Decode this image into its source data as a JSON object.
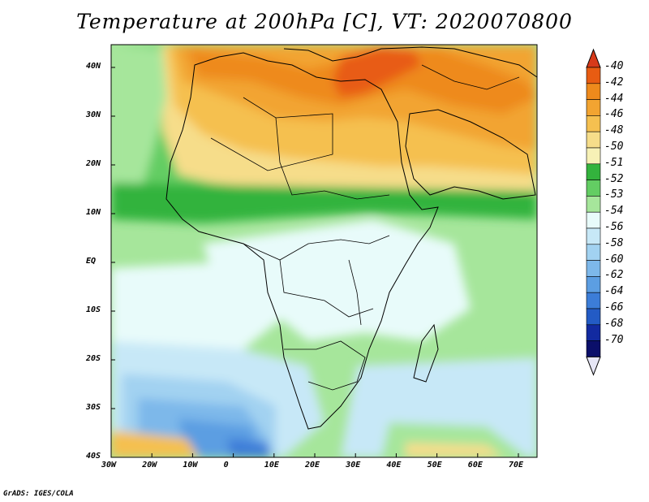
{
  "title": "Temperature at 200hPa [C], VT: 2020070800",
  "footer": "GrADS: IGES/COLA",
  "map": {
    "lon_range": [
      -30,
      75
    ],
    "lat_range": [
      -40,
      45
    ],
    "lat_ticks": [
      "40N",
      "30N",
      "20N",
      "10N",
      "EQ",
      "10S",
      "20S",
      "30S",
      "40S"
    ],
    "lon_ticks": [
      "30W",
      "20W",
      "10W",
      "0",
      "10E",
      "20E",
      "30E",
      "40E",
      "50E",
      "60E",
      "70E"
    ]
  },
  "colorbar": {
    "levels": [
      "-40",
      "-42",
      "-44",
      "-46",
      "-48",
      "-50",
      "-51",
      "-52",
      "-53",
      "-54",
      "-56",
      "-58",
      "-60",
      "-62",
      "-64",
      "-66",
      "-68",
      "-70"
    ],
    "colors": [
      "#d73a1a",
      "#e85c12",
      "#ee8a1c",
      "#f2a431",
      "#f5c050",
      "#f6dd8a",
      "#f7f1b6",
      "#33b33d",
      "#63cd63",
      "#a6e69b",
      "#e8fbfa",
      "#c7e8f7",
      "#a2d2f1",
      "#7db8ea",
      "#5c9ee2",
      "#3c7dd8",
      "#235bc5",
      "#122aa0",
      "#0b0f6a"
    ],
    "cap_low": "#e6e6f5",
    "cap_high": "#d73a1a"
  },
  "icons": {
    "coastline": "coastline-overlay",
    "borders": "country-borders-overlay"
  }
}
